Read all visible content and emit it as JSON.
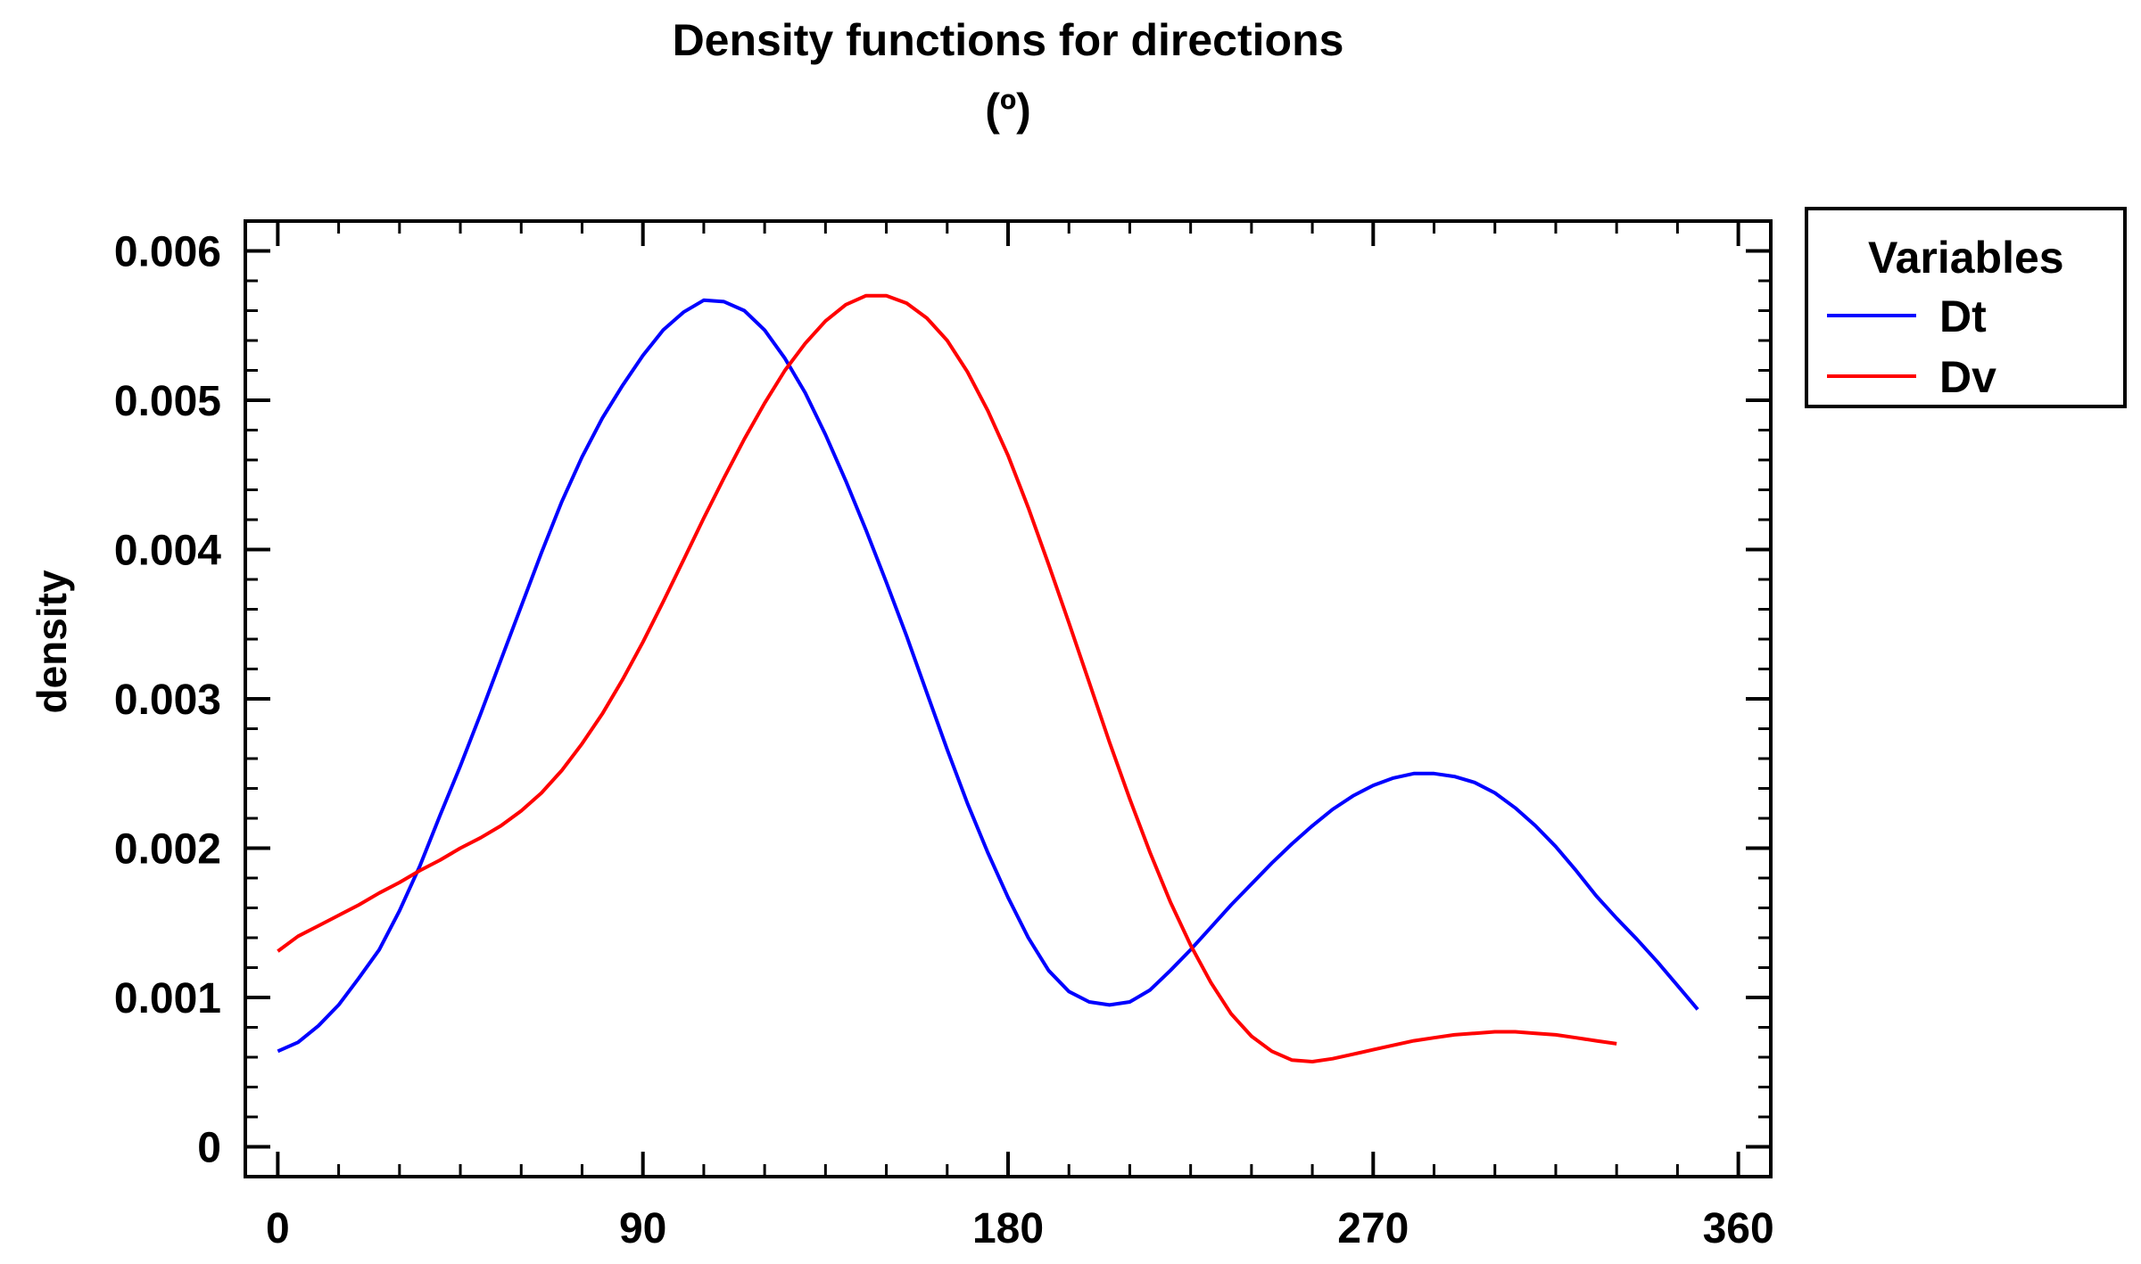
{
  "chart_data": {
    "type": "line",
    "title": "Density functions for directions",
    "subtitle": "(º)",
    "xlabel": "",
    "ylabel": "density",
    "xlim": [
      -8,
      368
    ],
    "ylim": [
      -0.0002,
      0.0062
    ],
    "x_ticks": [
      "0",
      "90",
      "180",
      "270",
      "360"
    ],
    "y_ticks": [
      "0",
      "0.001",
      "0.002",
      "0.003",
      "0.004",
      "0.005",
      "0.006"
    ],
    "grid": false,
    "legend": {
      "title": "Variables",
      "placement": "right, outside plot, top"
    },
    "series": [
      {
        "name": "Dt",
        "color": "#0000ff",
        "points": [
          [
            0,
            0.00064
          ],
          [
            5,
            0.0007
          ],
          [
            10,
            0.00081
          ],
          [
            15,
            0.00095
          ],
          [
            20,
            0.00113
          ],
          [
            25,
            0.00132
          ],
          [
            30,
            0.00158
          ],
          [
            35,
            0.00188
          ],
          [
            40,
            0.00222
          ],
          [
            45,
            0.00255
          ],
          [
            50,
            0.0029
          ],
          [
            55,
            0.00326
          ],
          [
            60,
            0.00362
          ],
          [
            65,
            0.00398
          ],
          [
            70,
            0.00432
          ],
          [
            75,
            0.00462
          ],
          [
            80,
            0.00488
          ],
          [
            85,
            0.0051
          ],
          [
            90,
            0.0053
          ],
          [
            95,
            0.00547
          ],
          [
            100,
            0.00559
          ],
          [
            105,
            0.00567
          ],
          [
            110,
            0.00566
          ],
          [
            115,
            0.0056
          ],
          [
            120,
            0.00547
          ],
          [
            125,
            0.00528
          ],
          [
            130,
            0.00505
          ],
          [
            135,
            0.00477
          ],
          [
            140,
            0.00446
          ],
          [
            145,
            0.00413
          ],
          [
            150,
            0.00378
          ],
          [
            155,
            0.00342
          ],
          [
            160,
            0.00304
          ],
          [
            165,
            0.00266
          ],
          [
            170,
            0.0023
          ],
          [
            175,
            0.00197
          ],
          [
            180,
            0.00167
          ],
          [
            185,
            0.0014
          ],
          [
            190,
            0.00118
          ],
          [
            195,
            0.00104
          ],
          [
            200,
            0.00097
          ],
          [
            205,
            0.00095
          ],
          [
            210,
            0.00097
          ],
          [
            215,
            0.00105
          ],
          [
            220,
            0.00118
          ],
          [
            225,
            0.00132
          ],
          [
            230,
            0.00147
          ],
          [
            235,
            0.00162
          ],
          [
            240,
            0.00176
          ],
          [
            245,
            0.0019
          ],
          [
            250,
            0.00203
          ],
          [
            255,
            0.00215
          ],
          [
            260,
            0.00226
          ],
          [
            265,
            0.00235
          ],
          [
            270,
            0.00242
          ],
          [
            275,
            0.00247
          ],
          [
            280,
            0.0025
          ],
          [
            285,
            0.0025
          ],
          [
            290,
            0.00248
          ],
          [
            295,
            0.00244
          ],
          [
            300,
            0.00237
          ],
          [
            305,
            0.00227
          ],
          [
            310,
            0.00215
          ],
          [
            315,
            0.00201
          ],
          [
            320,
            0.00185
          ],
          [
            325,
            0.00168
          ],
          [
            330,
            0.00153
          ],
          [
            335,
            0.00139
          ],
          [
            340,
            0.00124
          ],
          [
            345,
            0.00108
          ],
          [
            350,
            0.00092
          ]
        ]
      },
      {
        "name": "Dv",
        "color": "#ff0000",
        "points": [
          [
            0,
            0.00131
          ],
          [
            5,
            0.00141
          ],
          [
            10,
            0.00148
          ],
          [
            15,
            0.00155
          ],
          [
            20,
            0.00162
          ],
          [
            25,
            0.0017
          ],
          [
            30,
            0.00177
          ],
          [
            35,
            0.00185
          ],
          [
            40,
            0.00192
          ],
          [
            45,
            0.002
          ],
          [
            50,
            0.00207
          ],
          [
            55,
            0.00215
          ],
          [
            60,
            0.00225
          ],
          [
            65,
            0.00237
          ],
          [
            70,
            0.00252
          ],
          [
            75,
            0.0027
          ],
          [
            80,
            0.0029
          ],
          [
            85,
            0.00313
          ],
          [
            90,
            0.00338
          ],
          [
            95,
            0.00365
          ],
          [
            100,
            0.00393
          ],
          [
            105,
            0.00421
          ],
          [
            110,
            0.00448
          ],
          [
            115,
            0.00474
          ],
          [
            120,
            0.00498
          ],
          [
            125,
            0.0052
          ],
          [
            130,
            0.00538
          ],
          [
            135,
            0.00553
          ],
          [
            140,
            0.00564
          ],
          [
            145,
            0.0057
          ],
          [
            150,
            0.0057
          ],
          [
            155,
            0.00565
          ],
          [
            160,
            0.00555
          ],
          [
            165,
            0.0054
          ],
          [
            170,
            0.00519
          ],
          [
            175,
            0.00493
          ],
          [
            180,
            0.00463
          ],
          [
            185,
            0.00428
          ],
          [
            190,
            0.0039
          ],
          [
            195,
            0.00351
          ],
          [
            200,
            0.00311
          ],
          [
            205,
            0.00271
          ],
          [
            210,
            0.00233
          ],
          [
            215,
            0.00197
          ],
          [
            220,
            0.00164
          ],
          [
            225,
            0.00135
          ],
          [
            230,
            0.0011
          ],
          [
            235,
            0.00089
          ],
          [
            240,
            0.00074
          ],
          [
            245,
            0.00064
          ],
          [
            250,
            0.00058
          ],
          [
            255,
            0.00057
          ],
          [
            260,
            0.00059
          ],
          [
            265,
            0.00062
          ],
          [
            270,
            0.00065
          ],
          [
            275,
            0.00068
          ],
          [
            280,
            0.00071
          ],
          [
            285,
            0.00073
          ],
          [
            290,
            0.00075
          ],
          [
            295,
            0.00076
          ],
          [
            300,
            0.00077
          ],
          [
            305,
            0.00077
          ],
          [
            310,
            0.00076
          ],
          [
            315,
            0.00075
          ],
          [
            320,
            0.00073
          ],
          [
            325,
            0.00071
          ],
          [
            330,
            0.00069
          ]
        ]
      }
    ]
  }
}
